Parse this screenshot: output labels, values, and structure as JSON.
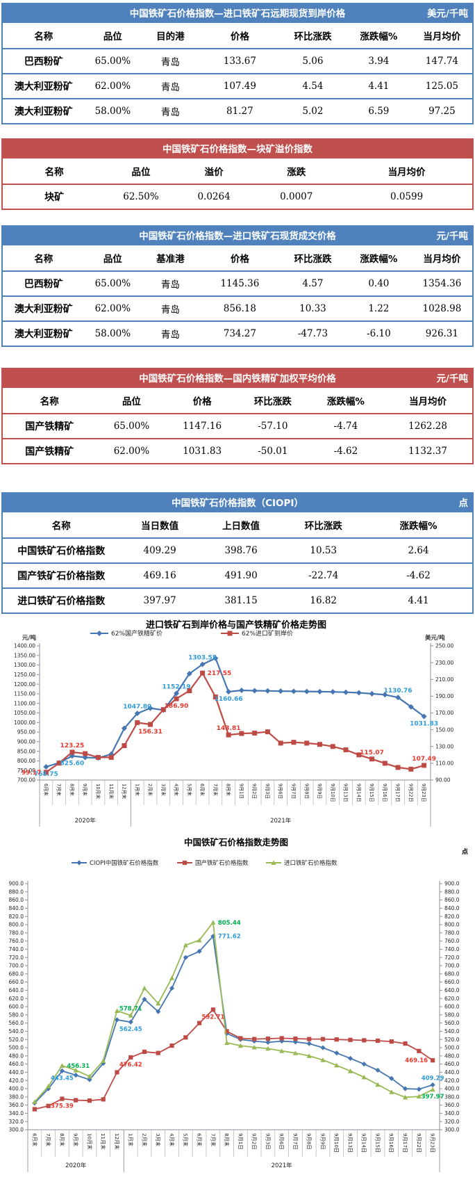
{
  "colors": {
    "table_header_blue": "#4f81bd",
    "table_header_red": "#c0504d",
    "series_blue": "#4576b2",
    "series_red": "#bd4a44",
    "series_green": "#98b954",
    "label_blue": "#2f9bd8",
    "label_red": "#e8372c",
    "label_green": "#00b050"
  },
  "tables": [
    {
      "theme": "blue",
      "title": "中国铁矿石价格指数—进口铁矿石远期现货到岸价格",
      "unit": "美元/千吨",
      "columns": [
        "名称",
        "品位",
        "目的港",
        "价格",
        "环比涨跌",
        "涨跌幅%",
        "当月均价"
      ],
      "rows": [
        [
          "巴西粉矿",
          "65.00%",
          "青岛",
          "133.67",
          "5.06",
          "3.94",
          "147.74"
        ],
        [
          "澳大利亚粉矿",
          "62.00%",
          "青岛",
          "107.49",
          "4.54",
          "4.41",
          "125.05"
        ],
        [
          "澳大利亚粉矿",
          "58.00%",
          "青岛",
          "81.27",
          "5.02",
          "6.59",
          "97.25"
        ]
      ]
    },
    {
      "theme": "red",
      "title": "中国铁矿石价格指数—块矿溢价指数",
      "unit": "",
      "columns": [
        "名称",
        "品位",
        "溢价",
        "涨跌",
        "当月均价"
      ],
      "rows": [
        [
          "块矿",
          "62.50%",
          "0.0264",
          "0.0007",
          "0.0599"
        ]
      ]
    },
    {
      "theme": "blue",
      "title": "中国铁矿石价格指数—进口铁矿石现货成交价格",
      "unit": "元/千吨",
      "columns": [
        "名称",
        "品位",
        "基准港",
        "价格",
        "环比涨跌",
        "涨跌幅%",
        "当月均价"
      ],
      "rows": [
        [
          "巴西粉矿",
          "65.00%",
          "青岛",
          "1145.36",
          "4.57",
          "0.40",
          "1354.36"
        ],
        [
          "澳大利亚粉矿",
          "62.00%",
          "青岛",
          "856.18",
          "10.33",
          "1.22",
          "1028.98"
        ],
        [
          "澳大利亚粉矿",
          "58.00%",
          "青岛",
          "734.27",
          "-47.73",
          "-6.10",
          "926.31"
        ]
      ]
    },
    {
      "theme": "red",
      "title": "中国铁矿石价格指数—国内铁精矿加权平均价格",
      "unit": "元/千吨",
      "columns": [
        "名称",
        "品位",
        "价格",
        "环比涨跌",
        "涨跌幅%",
        "当月均价"
      ],
      "rows": [
        [
          "国产铁精矿",
          "65.00%",
          "1147.16",
          "-57.10",
          "-4.74",
          "1262.28"
        ],
        [
          "国产铁精矿",
          "62.00%",
          "1031.83",
          "-50.01",
          "-4.62",
          "1132.37"
        ]
      ]
    },
    {
      "theme": "blue",
      "title": "中国铁矿石价格指数（CIOPI）",
      "unit": "点",
      "columns": [
        "名称",
        "当日数值",
        "上日数值",
        "环比涨跌",
        "涨跌幅%"
      ],
      "rows": [
        [
          "中国铁矿石价格指数",
          "409.29",
          "398.76",
          "10.53",
          "2.64"
        ],
        [
          "国产铁矿石价格指数",
          "469.16",
          "491.90",
          "-22.74",
          "-4.62"
        ],
        [
          "进口铁矿石价格指数",
          "397.97",
          "381.15",
          "16.82",
          "4.41"
        ]
      ]
    }
  ],
  "chart_data": [
    {
      "type": "line",
      "title": "进口铁矿石到岸价格与国产铁精矿价格走势图",
      "legend_position": "top",
      "grid": false,
      "y_left": {
        "unit": "元/吨",
        "min": 700,
        "max": 1400,
        "step": 50,
        "decimals": 2
      },
      "y_right": {
        "unit": "美元/吨",
        "min": 90,
        "max": 250,
        "step": 20,
        "decimals": 2
      },
      "categories": [
        "6月末",
        "7月末",
        "8月末",
        "9月末",
        "10月末",
        "11月末",
        "12月末",
        "1月末",
        "2月末",
        "3月末",
        "4月末",
        "5月末",
        "6月末",
        "7月末",
        "8月末",
        "9月1日",
        "9月2日",
        "9月3日",
        "9月6日",
        "9月7日",
        "9月8日",
        "9月9日",
        "9月10日",
        "9月13日",
        "9月14日",
        "9月15日",
        "9月16日",
        "9月17日",
        "9月22日",
        "9月23日"
      ],
      "year_groups": [
        {
          "label": "2020年",
          "from": 0,
          "to": 6
        },
        {
          "label": "2021年",
          "from": 7,
          "to": 29
        }
      ],
      "series": [
        {
          "name": "62%国产铁精矿价",
          "axis": "left",
          "marker": "diamond",
          "color": "#4576b2",
          "label_color": "#2f9bd8",
          "values": [
            768.75,
            790,
            825.6,
            818,
            815,
            835,
            970,
            1047.8,
            1075,
            1065,
            1152.19,
            1255,
            1303.55,
            1335,
            1160.66,
            1168,
            1166,
            1165,
            1164,
            1163,
            1162,
            1161,
            1160,
            1158,
            1155,
            1150,
            1145,
            1130.76,
            1081.84,
            1031.83
          ]
        },
        {
          "name": "62%进口矿到岸价",
          "axis": "right",
          "marker": "square",
          "color": "#bd4a44",
          "label_color": "#e8372c",
          "values": [
            99.17,
            110.2,
            123.25,
            121.5,
            117.0,
            117.0,
            131.0,
            158.5,
            156.31,
            174.0,
            186.9,
            196.5,
            217.55,
            189.0,
            143.81,
            145.5,
            146.0,
            147.5,
            134.0,
            135.0,
            134.0,
            132.5,
            130.0,
            126.0,
            120.0,
            115.07,
            110.0,
            105.0,
            102.95,
            107.49
          ]
        }
      ],
      "point_labels": [
        {
          "series": 0,
          "index": 0,
          "text": "768.75",
          "pos": "below"
        },
        {
          "series": 0,
          "index": 2,
          "text": "825.60",
          "pos": "below"
        },
        {
          "series": 0,
          "index": 7,
          "text": "1047.80",
          "pos": "above"
        },
        {
          "series": 0,
          "index": 10,
          "text": "1152.19",
          "pos": "above"
        },
        {
          "series": 0,
          "index": 12,
          "text": "1303.55",
          "pos": "above"
        },
        {
          "series": 0,
          "index": 14,
          "text": "1160.66",
          "pos": "below"
        },
        {
          "series": 0,
          "index": 27,
          "text": "1130.76",
          "pos": "above"
        },
        {
          "series": 0,
          "index": 29,
          "text": "1031.83",
          "pos": "below"
        },
        {
          "series": 1,
          "index": 0,
          "text": "99.17",
          "pos": "left"
        },
        {
          "series": 1,
          "index": 2,
          "text": "123.25",
          "pos": "above"
        },
        {
          "series": 1,
          "index": 8,
          "text": "156.31",
          "pos": "below"
        },
        {
          "series": 1,
          "index": 10,
          "text": "186.90",
          "pos": "below"
        },
        {
          "series": 1,
          "index": 12,
          "text": "217.55",
          "pos": "right"
        },
        {
          "series": 1,
          "index": 14,
          "text": "143.81",
          "pos": "above"
        },
        {
          "series": 1,
          "index": 25,
          "text": "115.07",
          "pos": "above"
        },
        {
          "series": 1,
          "index": 29,
          "text": "107.49",
          "pos": "above"
        }
      ]
    },
    {
      "type": "line",
      "title": "中国铁矿石价格指数走势图",
      "unit_label": "点",
      "legend_position": "top",
      "grid": false,
      "y_left": {
        "unit": "",
        "min": 300,
        "max": 900,
        "step": 20,
        "decimals": 1
      },
      "y_right": {
        "unit": "",
        "min": 300,
        "max": 900,
        "step": 20,
        "decimals": 1
      },
      "categories": [
        "6月末",
        "7月末",
        "8月末",
        "9月末",
        "10月末",
        "11月末",
        "12月末",
        "1月末",
        "2月末",
        "3月末",
        "4月末",
        "5月末",
        "6月末",
        "7月末",
        "8月末",
        "9月1日",
        "9月2日",
        "9月3日",
        "9月6日",
        "9月7日",
        "9月8日",
        "9月9日",
        "9月10日",
        "9月13日",
        "9月14日",
        "9月15日",
        "9月16日",
        "9月17日",
        "9月22日",
        "9月23日"
      ],
      "year_groups": [
        {
          "label": "2020年",
          "from": 0,
          "to": 6
        },
        {
          "label": "2021年",
          "from": 7,
          "to": 29
        }
      ],
      "series": [
        {
          "name": "CIOPI中国铁矿石价格指数",
          "axis": "left",
          "marker": "diamond",
          "color": "#4576b2",
          "label_color": "#2f9bd8",
          "values": [
            365,
            400,
            443.45,
            433,
            422,
            462,
            568,
            562.45,
            618,
            588,
            645,
            720,
            735,
            771.62,
            535,
            520,
            516,
            513,
            516,
            514,
            510,
            500,
            487,
            474,
            460,
            445,
            425,
            400,
            398.76,
            409.29
          ]
        },
        {
          "name": "国产铁矿石价格指数",
          "axis": "left",
          "marker": "square",
          "color": "#bd4a44",
          "label_color": "#e8372c",
          "values": [
            350,
            358,
            375.39,
            372,
            371,
            374,
            440,
            476.42,
            490,
            487,
            505,
            525,
            560,
            592.71,
            540,
            523,
            521,
            522,
            523,
            522,
            521,
            521,
            520,
            519,
            518,
            517,
            515,
            510,
            491.9,
            469.16
          ]
        },
        {
          "name": "进口铁矿石价格指数",
          "axis": "left",
          "marker": "triangle",
          "color": "#98b954",
          "label_color": "#00b050",
          "values": [
            368,
            406,
            456.31,
            445,
            430,
            468,
            590,
            578.71,
            645,
            608,
            670,
            750,
            762,
            805.44,
            512,
            505,
            501,
            498,
            492,
            487,
            480,
            470,
            457,
            443,
            428,
            410,
            392,
            379,
            381.15,
            397.97
          ]
        }
      ],
      "point_labels": [
        {
          "series": 0,
          "index": 2,
          "text": "443.45",
          "pos": "below"
        },
        {
          "series": 0,
          "index": 7,
          "text": "562.45",
          "pos": "below"
        },
        {
          "series": 0,
          "index": 13,
          "text": "771.62",
          "pos": "right"
        },
        {
          "series": 0,
          "index": 29,
          "text": "409.29",
          "pos": "above"
        },
        {
          "series": 1,
          "index": 2,
          "text": "375.39",
          "pos": "below"
        },
        {
          "series": 1,
          "index": 7,
          "text": "476.42",
          "pos": "below"
        },
        {
          "series": 1,
          "index": 13,
          "text": "592.71",
          "pos": "below"
        },
        {
          "series": 1,
          "index": 29,
          "text": "469.16",
          "pos": "left"
        },
        {
          "series": 2,
          "index": 2,
          "text": "456.31",
          "pos": "right"
        },
        {
          "series": 2,
          "index": 7,
          "text": "578.71",
          "pos": "above"
        },
        {
          "series": 2,
          "index": 13,
          "text": "805.44",
          "pos": "right"
        },
        {
          "series": 2,
          "index": 29,
          "text": "397.97",
          "pos": "below"
        }
      ]
    }
  ]
}
